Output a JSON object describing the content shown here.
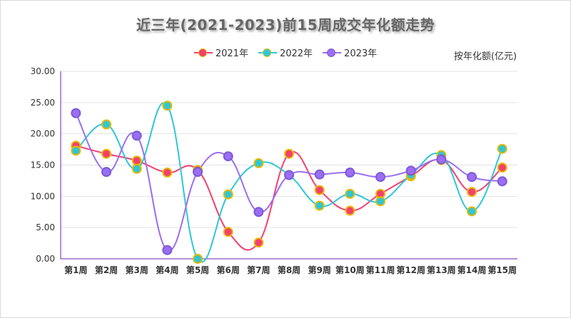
{
  "chart_data": {
    "type": "line",
    "title": "近三年(2021-2023)前15周成交年化额走势",
    "unit_label": "按年化额(亿元)",
    "categories": [
      "第1周",
      "第2周",
      "第3周",
      "第4周",
      "第5周",
      "第6周",
      "第7周",
      "第8周",
      "第9周",
      "第10周",
      "第11周",
      "第12周",
      "第13周",
      "第14周",
      "第15周"
    ],
    "ylim": [
      0,
      30
    ],
    "yticks": [
      "0.00",
      "5.00",
      "10.00",
      "15.00",
      "20.00",
      "25.00",
      "30.00"
    ],
    "grid": true,
    "legend_position": "top-center",
    "series": [
      {
        "name": "2021年",
        "color": "#f43f6f",
        "marker_border": "#e6b800",
        "values": [
          18.1,
          16.8,
          15.7,
          13.8,
          14.2,
          4.3,
          2.6,
          16.8,
          11.0,
          7.7,
          10.4,
          13.2,
          15.8,
          10.7,
          14.6
        ]
      },
      {
        "name": "2022年",
        "color": "#2ec7d6",
        "marker_border": "#e6b800",
        "values": [
          17.3,
          21.5,
          14.4,
          24.5,
          0.0,
          10.3,
          15.3,
          13.4,
          8.5,
          10.4,
          9.2,
          13.4,
          16.6,
          7.6,
          17.6
        ]
      },
      {
        "name": "2023年",
        "color": "#9b6ef3",
        "marker_border": "#7c5ad9",
        "values": [
          23.3,
          13.9,
          19.7,
          1.4,
          13.9,
          16.4,
          7.5,
          13.4,
          13.5,
          13.8,
          13.1,
          14.1,
          15.9,
          13.1,
          12.4
        ]
      }
    ]
  }
}
